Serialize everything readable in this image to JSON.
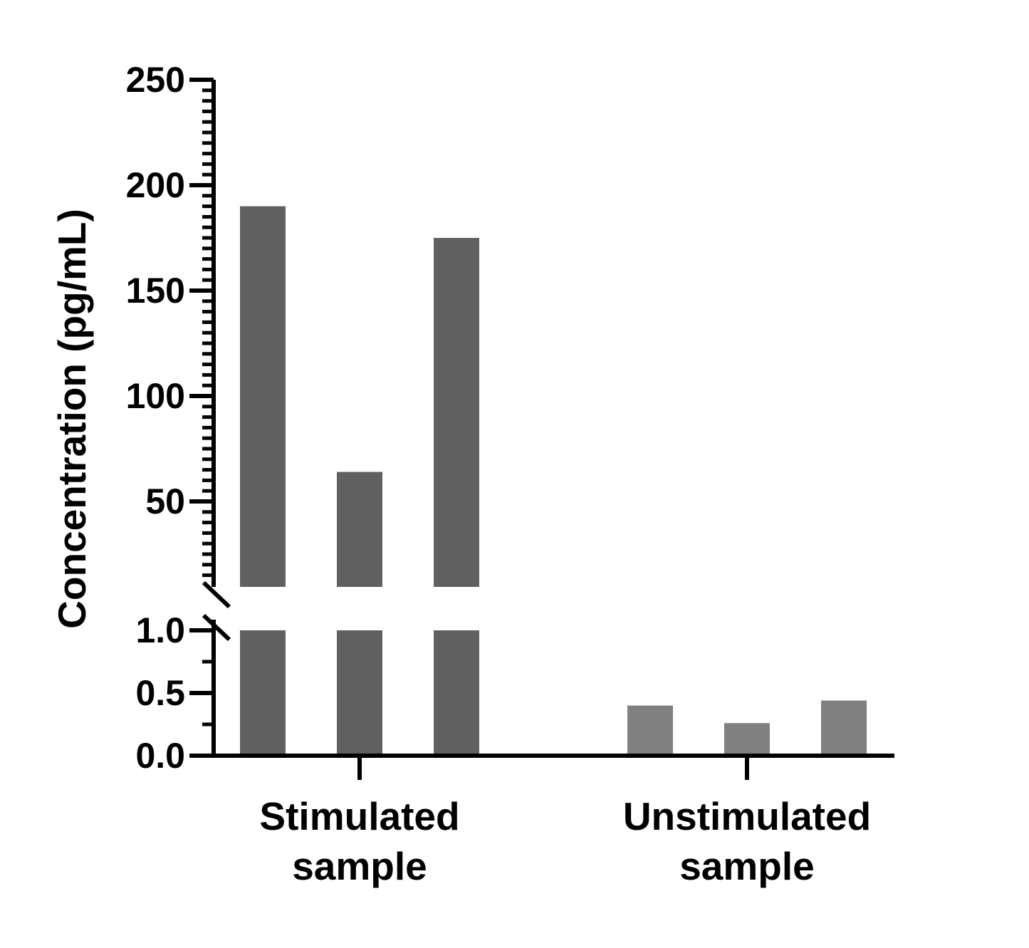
{
  "chart_data": {
    "type": "bar",
    "ylabel": "Concentration (pg/mL)",
    "xlabel": "",
    "broken_y_axis": true,
    "y_segments": {
      "upper": {
        "range": [
          10,
          250
        ],
        "ticks": [
          50,
          100,
          150,
          200,
          250
        ],
        "tick_labels": [
          "50",
          "100",
          "150",
          "200",
          "250"
        ]
      },
      "lower": {
        "range": [
          0,
          1.0
        ],
        "ticks": [
          0.0,
          0.5,
          1.0
        ],
        "tick_labels": [
          "0.0",
          "0.5",
          "1.0"
        ]
      }
    },
    "groups": [
      {
        "label_line1": "Stimulated",
        "label_line2": "sample",
        "color": "#606060",
        "values": [
          190,
          64,
          175
        ]
      },
      {
        "label_line1": "Unstimulated",
        "label_line2": "sample",
        "color": "#808080",
        "values": [
          0.4,
          0.26,
          0.44
        ]
      }
    ],
    "grid": false,
    "legend": "none"
  }
}
